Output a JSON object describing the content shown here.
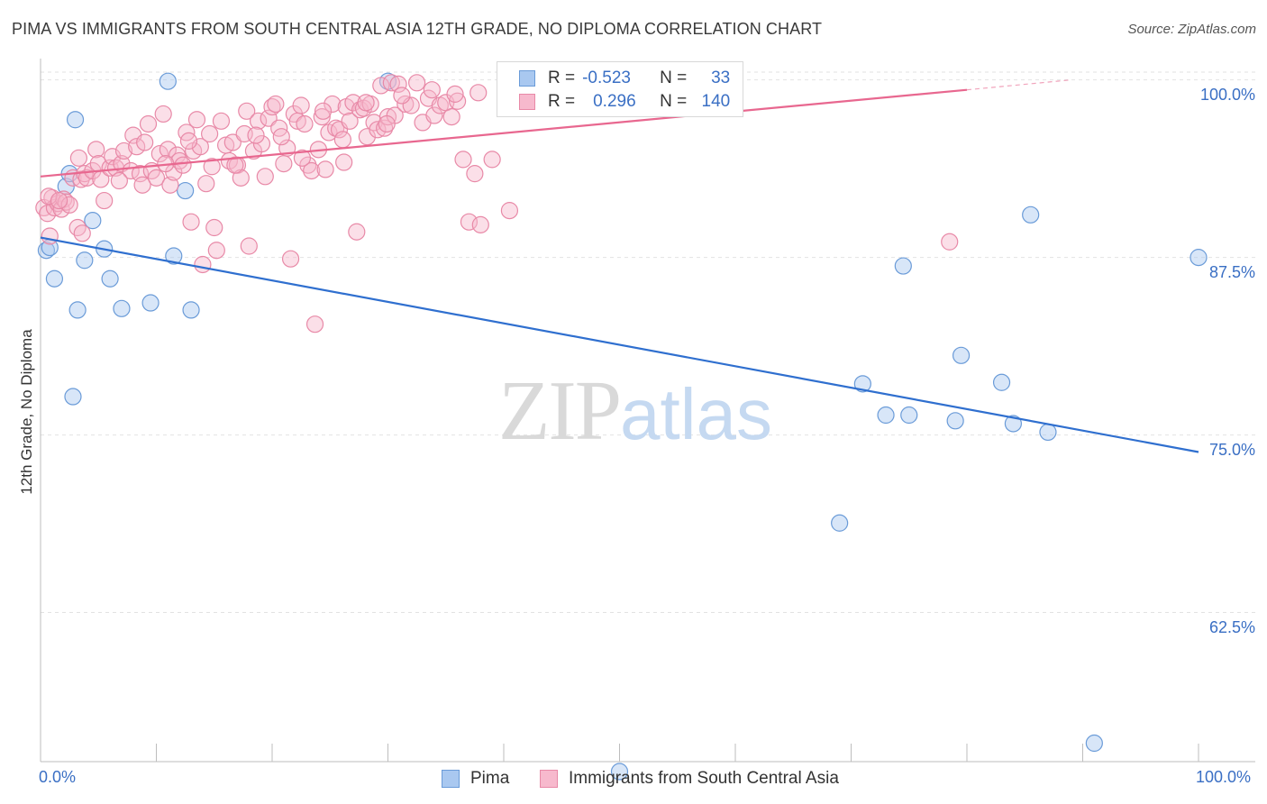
{
  "title": "PIMA VS IMMIGRANTS FROM SOUTH CENTRAL ASIA 12TH GRADE, NO DIPLOMA CORRELATION CHART",
  "source": "Source: ZipAtlas.com",
  "watermark": {
    "zip": "ZIP",
    "atlas": "atlas"
  },
  "legend": {
    "rows": [
      {
        "r_label": "R =",
        "r_value": "-0.523",
        "n_label": "N =",
        "n_value": "33",
        "color": "#a9c8f0",
        "border": "#6a9bd8"
      },
      {
        "r_label": "R =",
        "r_value": "0.296",
        "n_label": "N =",
        "n_value": "140",
        "color": "#f7b9cd",
        "border": "#e889a7"
      }
    ]
  },
  "bottom_legend": [
    {
      "label": "Pima",
      "color": "#a9c8f0",
      "border": "#6a9bd8"
    },
    {
      "label": "Immigrants from South Central Asia",
      "color": "#f7b9cd",
      "border": "#e889a7"
    }
  ],
  "chart_data": {
    "type": "scatter",
    "title": "PIMA VS IMMIGRANTS FROM SOUTH CENTRAL ASIA 12TH GRADE, NO DIPLOMA CORRELATION CHART",
    "xlabel": "",
    "ylabel": "12th Grade, No Diploma",
    "x_tick_labels": [
      "0.0%",
      "100.0%"
    ],
    "y_tick_labels": [
      "100.0%",
      "87.5%",
      "75.0%",
      "62.5%"
    ],
    "y_tick_values": [
      100.0,
      87.5,
      75.0,
      62.5
    ],
    "xlim": [
      0,
      100
    ],
    "ylim": [
      52,
      101.5
    ],
    "grid": true,
    "legend_position": "top-center",
    "series": [
      {
        "name": "Pima",
        "color": "#a9c8f0",
        "stroke": "#6a9bd8",
        "line_color": "#2f6fcf",
        "trend": [
          [
            0,
            88.9
          ],
          [
            100,
            73.8
          ]
        ],
        "points": [
          [
            0.5,
            88.0
          ],
          [
            0.8,
            88.2
          ],
          [
            1.2,
            86.0
          ],
          [
            2.2,
            92.5
          ],
          [
            2.5,
            93.4
          ],
          [
            2.8,
            77.7
          ],
          [
            3.0,
            97.2
          ],
          [
            3.2,
            83.8
          ],
          [
            3.8,
            87.3
          ],
          [
            4.5,
            90.1
          ],
          [
            5.5,
            88.1
          ],
          [
            6.0,
            86.0
          ],
          [
            7.0,
            83.9
          ],
          [
            9.5,
            84.3
          ],
          [
            11.0,
            99.9
          ],
          [
            11.5,
            87.6
          ],
          [
            12.5,
            92.2
          ],
          [
            13.0,
            83.8
          ],
          [
            30.0,
            99.9
          ],
          [
            50.0,
            51.3
          ],
          [
            69.0,
            68.8
          ],
          [
            71.0,
            78.6
          ],
          [
            73.0,
            76.4
          ],
          [
            74.5,
            86.9
          ],
          [
            75.0,
            76.4
          ],
          [
            79.0,
            76.0
          ],
          [
            79.5,
            80.6
          ],
          [
            83.0,
            78.7
          ],
          [
            84.0,
            75.8
          ],
          [
            85.5,
            90.5
          ],
          [
            87.0,
            75.2
          ],
          [
            91.0,
            53.3
          ],
          [
            100.0,
            87.5
          ]
        ]
      },
      {
        "name": "Immigrants from South Central Asia",
        "color": "#f7b9cd",
        "stroke": "#e889a7",
        "line_color": "#e8678f",
        "trend": [
          [
            0,
            93.2
          ],
          [
            80,
            99.3
          ]
        ],
        "trend_dashed": [
          [
            80,
            99.3
          ],
          [
            89,
            100.0
          ]
        ],
        "points": [
          [
            0.3,
            91.0
          ],
          [
            0.6,
            90.6
          ],
          [
            0.8,
            89.0
          ],
          [
            1.0,
            91.7
          ],
          [
            1.2,
            91.0
          ],
          [
            1.5,
            91.3
          ],
          [
            1.8,
            90.9
          ],
          [
            2.0,
            91.6
          ],
          [
            2.2,
            91.4
          ],
          [
            2.5,
            91.2
          ],
          [
            2.8,
            93.1
          ],
          [
            3.2,
            89.6
          ],
          [
            3.5,
            93.0
          ],
          [
            3.6,
            89.2
          ],
          [
            3.8,
            93.4
          ],
          [
            4.0,
            93.1
          ],
          [
            4.5,
            93.6
          ],
          [
            4.8,
            95.1
          ],
          [
            5.0,
            94.1
          ],
          [
            5.2,
            93.0
          ],
          [
            5.5,
            91.5
          ],
          [
            6.0,
            93.8
          ],
          [
            6.2,
            94.6
          ],
          [
            6.5,
            93.8
          ],
          [
            7.0,
            94.1
          ],
          [
            7.2,
            95.0
          ],
          [
            7.8,
            93.6
          ],
          [
            8.0,
            96.1
          ],
          [
            8.3,
            95.3
          ],
          [
            8.6,
            93.4
          ],
          [
            9.0,
            95.6
          ],
          [
            9.3,
            96.9
          ],
          [
            9.6,
            93.6
          ],
          [
            10.0,
            93.1
          ],
          [
            10.3,
            94.8
          ],
          [
            10.6,
            97.6
          ],
          [
            11.0,
            95.1
          ],
          [
            11.2,
            92.6
          ],
          [
            11.5,
            93.5
          ],
          [
            11.8,
            94.7
          ],
          [
            12.0,
            94.3
          ],
          [
            12.3,
            94.0
          ],
          [
            12.6,
            96.3
          ],
          [
            13.0,
            90.0
          ],
          [
            13.2,
            95.0
          ],
          [
            13.5,
            97.2
          ],
          [
            13.8,
            95.3
          ],
          [
            14.0,
            87.0
          ],
          [
            14.3,
            92.7
          ],
          [
            14.6,
            96.2
          ],
          [
            15.0,
            89.6
          ],
          [
            15.2,
            88.0
          ],
          [
            15.6,
            97.1
          ],
          [
            16.0,
            95.4
          ],
          [
            16.3,
            94.3
          ],
          [
            16.6,
            95.6
          ],
          [
            17.0,
            94.0
          ],
          [
            17.3,
            93.1
          ],
          [
            17.6,
            96.2
          ],
          [
            17.8,
            97.8
          ],
          [
            18.0,
            88.3
          ],
          [
            18.4,
            95.0
          ],
          [
            18.8,
            97.1
          ],
          [
            19.1,
            95.5
          ],
          [
            19.4,
            93.2
          ],
          [
            19.7,
            97.3
          ],
          [
            20.0,
            98.1
          ],
          [
            20.3,
            98.3
          ],
          [
            20.6,
            96.6
          ],
          [
            21.0,
            94.1
          ],
          [
            21.3,
            95.2
          ],
          [
            21.6,
            87.4
          ],
          [
            21.9,
            97.6
          ],
          [
            22.2,
            97.1
          ],
          [
            22.5,
            98.2
          ],
          [
            22.8,
            96.9
          ],
          [
            23.1,
            94.0
          ],
          [
            23.4,
            93.6
          ],
          [
            23.7,
            82.8
          ],
          [
            24.0,
            95.1
          ],
          [
            24.3,
            97.4
          ],
          [
            24.6,
            93.7
          ],
          [
            24.9,
            96.3
          ],
          [
            25.2,
            98.3
          ],
          [
            25.5,
            96.6
          ],
          [
            25.8,
            96.5
          ],
          [
            26.1,
            95.8
          ],
          [
            26.4,
            98.1
          ],
          [
            26.7,
            97.1
          ],
          [
            27.0,
            98.4
          ],
          [
            27.3,
            89.3
          ],
          [
            27.6,
            97.9
          ],
          [
            27.9,
            98.0
          ],
          [
            28.2,
            96.0
          ],
          [
            28.5,
            98.3
          ],
          [
            28.8,
            97.0
          ],
          [
            29.1,
            96.5
          ],
          [
            29.4,
            99.6
          ],
          [
            29.7,
            96.6
          ],
          [
            30.0,
            97.4
          ],
          [
            30.3,
            99.8
          ],
          [
            30.6,
            97.5
          ],
          [
            30.9,
            99.7
          ],
          [
            31.5,
            98.3
          ],
          [
            32.0,
            98.2
          ],
          [
            32.5,
            99.8
          ],
          [
            33.0,
            97.0
          ],
          [
            33.5,
            98.7
          ],
          [
            34.0,
            97.5
          ],
          [
            34.5,
            98.2
          ],
          [
            35.0,
            98.4
          ],
          [
            35.5,
            97.4
          ],
          [
            36.0,
            98.5
          ],
          [
            36.5,
            94.4
          ],
          [
            37.0,
            90.0
          ],
          [
            37.5,
            93.4
          ],
          [
            38.0,
            89.8
          ],
          [
            39.0,
            94.4
          ],
          [
            40.5,
            90.8
          ],
          [
            78.5,
            88.6
          ],
          [
            0.7,
            91.8
          ],
          [
            1.6,
            91.5
          ],
          [
            3.3,
            94.5
          ],
          [
            6.8,
            92.9
          ],
          [
            8.8,
            92.6
          ],
          [
            10.8,
            94.1
          ],
          [
            12.8,
            95.7
          ],
          [
            14.8,
            93.9
          ],
          [
            16.8,
            94.0
          ],
          [
            18.6,
            96.1
          ],
          [
            20.8,
            96.0
          ],
          [
            22.6,
            94.5
          ],
          [
            24.4,
            97.8
          ],
          [
            26.2,
            94.2
          ],
          [
            28.1,
            98.4
          ],
          [
            29.9,
            96.9
          ],
          [
            31.2,
            98.9
          ],
          [
            33.8,
            99.3
          ],
          [
            35.8,
            99.0
          ],
          [
            37.8,
            99.1
          ]
        ]
      }
    ]
  }
}
